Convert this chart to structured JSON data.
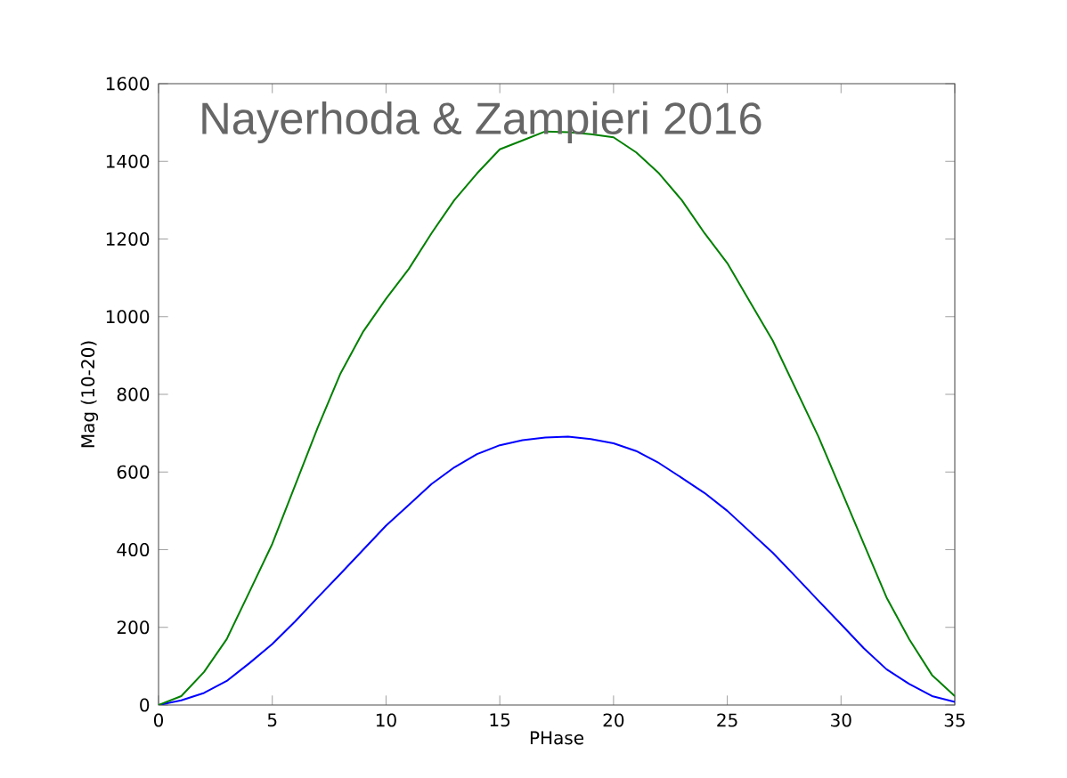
{
  "chart_data": {
    "type": "line",
    "xlabel": "PHase",
    "ylabel": "Mag (10-20)",
    "annotations": [
      "Nayerhoda & Zampieri 2016"
    ],
    "x": [
      0,
      1,
      2,
      3,
      4,
      5,
      6,
      7,
      8,
      9,
      10,
      11,
      12,
      13,
      14,
      15,
      16,
      17,
      18,
      19,
      20,
      21,
      22,
      23,
      24,
      25,
      26,
      27,
      28,
      29,
      30,
      31,
      32,
      33,
      34,
      35
    ],
    "series": [
      {
        "color": "#0000ff",
        "values": [
          0,
          12,
          31,
          62,
          108,
          157,
          215,
          277,
          338,
          400,
          462,
          515,
          569,
          612,
          646,
          669,
          682,
          689,
          691,
          685,
          674,
          654,
          623,
          585,
          546,
          500,
          446,
          392,
          331,
          269,
          208,
          146,
          92,
          54,
          23,
          8
        ]
      },
      {
        "color": "#008000",
        "values": [
          0,
          23,
          85,
          170,
          292,
          415,
          565,
          715,
          854,
          962,
          1046,
          1123,
          1215,
          1300,
          1369,
          1431,
          1454,
          1477,
          1475,
          1470,
          1462,
          1423,
          1369,
          1300,
          1215,
          1138,
          1038,
          938,
          815,
          692,
          554,
          415,
          277,
          169,
          77,
          23
        ]
      }
    ],
    "xlim": [
      0,
      35
    ],
    "ylim": [
      0,
      1600
    ],
    "xticks": [
      0,
      5,
      10,
      15,
      20,
      25,
      30,
      35
    ],
    "yticks": [
      0,
      200,
      400,
      600,
      800,
      1000,
      1200,
      1400,
      1600
    ],
    "grid": false,
    "marker": "none"
  }
}
